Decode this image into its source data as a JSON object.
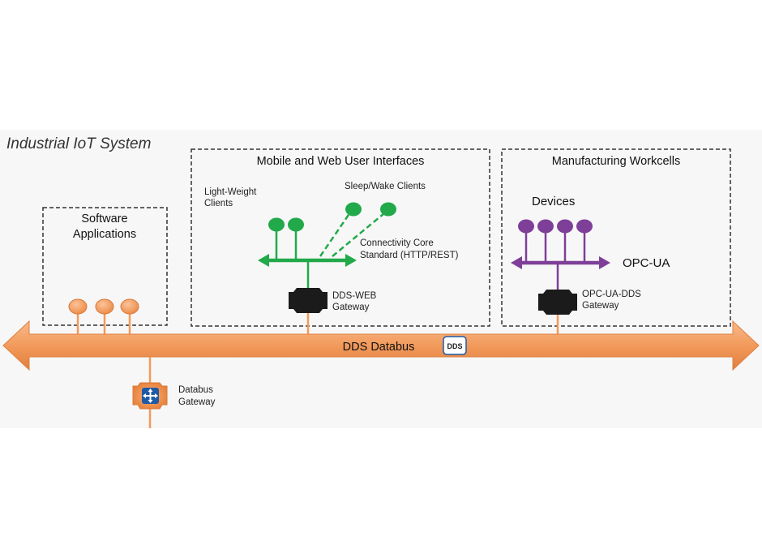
{
  "system_title": "Industrial IoT System",
  "boxes": {
    "software": {
      "title_line1": "Software",
      "title_line2": "Applications"
    },
    "mobile_web": {
      "title": "Mobile and Web User Interfaces"
    },
    "manufacturing": {
      "title": "Manufacturing Workcells"
    }
  },
  "labels": {
    "light_weight_line1": "Light-Weight",
    "light_weight_line2": "Clients",
    "sleep_wake": "Sleep/Wake Clients",
    "connectivity_line1": "Connectivity Core",
    "connectivity_line2": "Standard (HTTP/REST)",
    "dds_web_line1": "DDS-WEB",
    "dds_web_line2": "Gateway",
    "devices": "Devices",
    "opc_ua": "OPC-UA",
    "opc_ua_dds_line1": "OPC-UA-DDS",
    "opc_ua_dds_line2": "Gateway",
    "databus_gw_line1": "Databus",
    "databus_gw_line2": "Gateway"
  },
  "databus": {
    "label": "DDS Databus",
    "logo_text": "DDS"
  },
  "colors": {
    "orange": "#f29a5c",
    "orange_dark": "#d9793a",
    "green": "#22a94a",
    "purple": "#7e3f98",
    "gateway_black": "#1b1b1b",
    "dds_logo_blue": "#1f5aa6"
  },
  "icons": [
    "dds-logo-icon",
    "databus-gateway-icon",
    "dds-web-gateway-icon",
    "opc-ua-dds-gateway-icon"
  ]
}
